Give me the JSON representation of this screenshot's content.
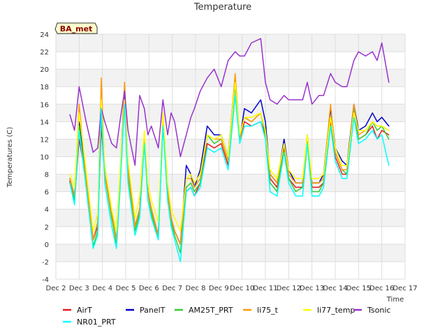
{
  "chart_data": {
    "type": "line",
    "title": "Temperature",
    "site_label": "BA_met",
    "xlabel": "Time",
    "ylabel": "Temperatures (C)",
    "xlim": [
      2,
      17
    ],
    "ylim": [
      -4,
      24
    ],
    "x_ticks": [
      2,
      3,
      4,
      5,
      6,
      7,
      8,
      9,
      10,
      11,
      12,
      13,
      14,
      15,
      16,
      17
    ],
    "x_tick_labels": [
      "Dec 2",
      "Dec 3",
      "Dec 4",
      "Dec 5",
      "Dec 6",
      "Dec 7",
      "Dec 8",
      "Dec 9",
      "Dec 10",
      "Dec 11",
      "Dec 12",
      "Dec 13",
      "Dec 14",
      "Dec 15",
      "Dec 16",
      "Dec 17"
    ],
    "y_ticks": [
      -4,
      -2,
      0,
      2,
      4,
      6,
      8,
      10,
      12,
      14,
      16,
      18,
      20,
      22,
      24
    ],
    "y_tick_labels": [
      "-4",
      "-2",
      "0",
      "2",
      "4",
      "6",
      "8",
      "10",
      "12",
      "14",
      "16",
      "18",
      "20",
      "22",
      "24"
    ],
    "grid": true,
    "legend_position": "bottom",
    "x": [
      2.6,
      2.8,
      3.0,
      3.3,
      3.6,
      3.8,
      3.95,
      4.1,
      4.4,
      4.6,
      4.75,
      4.95,
      5.1,
      5.4,
      5.6,
      5.8,
      5.95,
      6.1,
      6.4,
      6.6,
      6.8,
      6.95,
      7.1,
      7.35,
      7.6,
      7.8,
      7.95,
      8.2,
      8.5,
      8.8,
      9.1,
      9.4,
      9.7,
      9.9,
      10.1,
      10.4,
      10.8,
      11.0,
      11.2,
      11.5,
      11.8,
      12.0,
      12.3,
      12.6,
      12.8,
      13.0,
      13.3,
      13.5,
      13.8,
      14.0,
      14.3,
      14.5,
      14.8,
      15.0,
      15.3,
      15.6,
      15.8,
      16.0,
      16.3
    ],
    "series": [
      {
        "name": "AirT",
        "color": "#e41a1c",
        "values": [
          7.2,
          5.0,
          12.0,
          7.5,
          0.5,
          2.0,
          13.5,
          8.0,
          3.0,
          0.5,
          7.0,
          17.0,
          8.0,
          2.0,
          4.0,
          12.0,
          6.0,
          4.0,
          1.0,
          14.0,
          6.0,
          3.0,
          1.5,
          0.0,
          6.0,
          6.5,
          5.5,
          7.0,
          11.5,
          11.0,
          11.5,
          9.0,
          19.0,
          12.0,
          14.0,
          13.5,
          14.0,
          12.5,
          7.5,
          6.5,
          11.0,
          7.5,
          6.5,
          6.5,
          12.0,
          6.5,
          6.5,
          7.0,
          14.0,
          10.0,
          8.0,
          8.0,
          15.5,
          12.0,
          12.5,
          13.5,
          12.0,
          13.0,
          12.5
        ]
      },
      {
        "name": "PanelT",
        "color": "#0000cd",
        "values": [
          7.5,
          5.5,
          14.0,
          7.5,
          0.5,
          2.5,
          16.0,
          8.0,
          3.5,
          0.5,
          7.0,
          17.0,
          9.0,
          2.0,
          4.0,
          12.5,
          6.0,
          4.0,
          1.0,
          14.0,
          6.0,
          3.0,
          1.5,
          0.0,
          9.0,
          8.0,
          6.5,
          8.5,
          13.5,
          12.5,
          12.5,
          10.0,
          19.0,
          12.0,
          15.5,
          15.0,
          16.5,
          14.0,
          8.0,
          7.0,
          12.0,
          8.5,
          7.0,
          7.0,
          12.5,
          7.0,
          7.0,
          8.0,
          15.5,
          11.0,
          9.5,
          9.0,
          16.0,
          13.0,
          13.5,
          15.0,
          14.0,
          14.5,
          13.5
        ]
      },
      {
        "name": "AM25T_PRT",
        "color": "#32cd32",
        "values": [
          7.0,
          5.0,
          13.5,
          7.0,
          -0.2,
          1.5,
          15.0,
          8.0,
          3.0,
          0.0,
          7.0,
          16.5,
          8.0,
          1.5,
          3.5,
          12.0,
          6.0,
          3.5,
          0.5,
          14.0,
          6.0,
          2.5,
          1.0,
          -1.0,
          6.5,
          7.0,
          6.0,
          7.0,
          12.5,
          11.5,
          12.0,
          9.5,
          18.0,
          12.0,
          14.5,
          14.0,
          15.0,
          12.5,
          7.0,
          6.0,
          11.5,
          7.5,
          6.0,
          6.5,
          12.5,
          6.0,
          6.0,
          7.0,
          14.5,
          10.5,
          8.5,
          8.0,
          15.5,
          12.0,
          12.5,
          14.0,
          13.0,
          13.5,
          12.0
        ]
      },
      {
        "name": "li75_t",
        "color": "#ff9900",
        "values": [
          7.5,
          5.5,
          16.0,
          7.5,
          0.5,
          2.5,
          19.0,
          8.0,
          3.5,
          0.5,
          7.5,
          18.5,
          8.5,
          2.0,
          4.0,
          12.5,
          6.0,
          4.0,
          1.0,
          15.0,
          6.0,
          3.0,
          1.5,
          0.0,
          7.5,
          7.5,
          6.5,
          7.5,
          12.5,
          12.0,
          12.0,
          9.5,
          19.5,
          12.0,
          14.5,
          14.0,
          15.0,
          13.0,
          8.0,
          7.0,
          11.5,
          8.0,
          7.0,
          7.0,
          12.5,
          7.0,
          7.0,
          7.5,
          16.0,
          10.5,
          8.5,
          8.5,
          16.0,
          12.5,
          13.0,
          14.0,
          13.5,
          13.5,
          13.0
        ]
      },
      {
        "name": "li77_temp",
        "color": "#ffff00",
        "values": [
          8.0,
          6.5,
          15.0,
          8.5,
          1.5,
          3.5,
          16.5,
          9.0,
          4.0,
          1.5,
          8.0,
          16.5,
          9.5,
          3.0,
          5.5,
          13.0,
          7.0,
          5.0,
          2.5,
          15.0,
          7.0,
          4.0,
          3.0,
          1.5,
          7.5,
          8.0,
          7.0,
          8.0,
          12.5,
          12.0,
          12.5,
          10.0,
          18.5,
          12.5,
          14.5,
          14.5,
          15.0,
          13.0,
          8.5,
          7.5,
          11.5,
          8.5,
          7.5,
          7.5,
          12.5,
          7.5,
          7.5,
          8.0,
          14.5,
          11.0,
          9.0,
          9.0,
          15.0,
          13.0,
          13.0,
          14.0,
          13.5,
          13.5,
          13.0
        ]
      },
      {
        "name": "Tsonic",
        "color": "#9932cc",
        "values": [
          14.8,
          13.0,
          18.0,
          14.0,
          10.5,
          11.0,
          15.5,
          14.0,
          11.5,
          11.0,
          14.0,
          17.5,
          13.0,
          9.0,
          17.0,
          15.5,
          12.5,
          13.5,
          11.0,
          16.5,
          12.5,
          15.0,
          14.0,
          10.0,
          12.5,
          14.5,
          15.5,
          17.5,
          19.0,
          20.0,
          18.0,
          21.0,
          22.0,
          21.5,
          21.5,
          23.0,
          23.5,
          18.5,
          16.5,
          16.0,
          17.0,
          16.5,
          16.5,
          16.5,
          18.5,
          16.0,
          17.0,
          17.0,
          19.5,
          18.5,
          18.0,
          18.0,
          21.0,
          22.0,
          21.5,
          22.0,
          21.0,
          23.0,
          18.5
        ]
      },
      {
        "name": "NR01_PRT",
        "color": "#00ffff",
        "values": [
          7.0,
          4.5,
          13.0,
          6.5,
          -0.5,
          1.0,
          15.5,
          7.0,
          2.0,
          -0.5,
          6.0,
          16.0,
          7.0,
          1.0,
          3.0,
          11.5,
          5.0,
          3.0,
          0.5,
          13.5,
          5.0,
          2.0,
          0.5,
          -2.0,
          6.0,
          6.5,
          5.5,
          6.5,
          11.0,
          10.5,
          11.0,
          8.5,
          17.0,
          11.5,
          13.5,
          13.5,
          14.0,
          12.0,
          6.0,
          5.5,
          10.5,
          7.0,
          5.5,
          5.5,
          11.5,
          5.5,
          5.5,
          6.5,
          13.5,
          9.5,
          7.5,
          7.5,
          14.5,
          11.5,
          12.0,
          13.0,
          12.0,
          12.5,
          9.0
        ]
      }
    ]
  }
}
